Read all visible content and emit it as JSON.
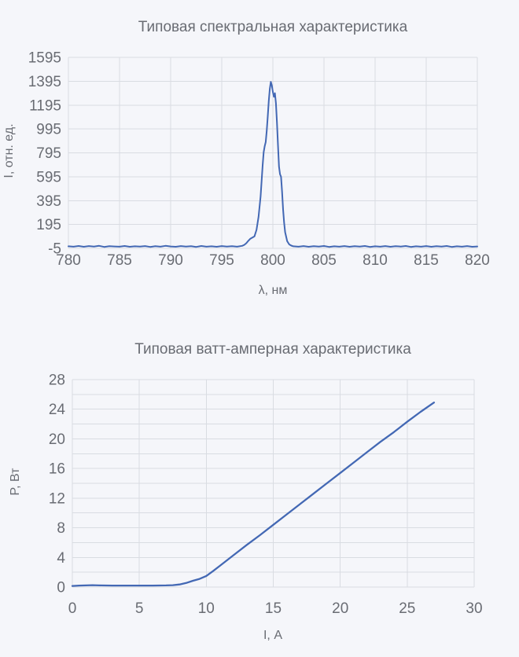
{
  "theme": {
    "background": "#f5f6fa",
    "grid_color": "#d9dce2",
    "text_color": "#696c73",
    "line_color": "#4368b4"
  },
  "chart_data": [
    {
      "type": "line",
      "title": "Типовая спектральная характеристика",
      "xlabel": "λ, нм",
      "ylabel": "I, отн. ед.",
      "xlim": [
        780,
        820
      ],
      "ylim": [
        -5,
        1595
      ],
      "x_ticks": [
        780,
        785,
        790,
        795,
        800,
        805,
        810,
        815,
        820
      ],
      "y_grid": [
        -5,
        195,
        395,
        595,
        795,
        995,
        1195,
        1395,
        1595
      ],
      "y_labels": [
        -5,
        195,
        395,
        595,
        795,
        995,
        1195,
        1395,
        1595
      ],
      "grid": "on",
      "legend": "none",
      "line_color": "#4368b4",
      "line_width": 2,
      "points": [
        [
          780,
          12
        ],
        [
          780.5,
          9
        ],
        [
          781,
          15
        ],
        [
          781.5,
          8
        ],
        [
          782,
          14
        ],
        [
          782.5,
          10
        ],
        [
          783,
          16
        ],
        [
          783.5,
          7
        ],
        [
          784,
          13
        ],
        [
          784.5,
          11
        ],
        [
          785,
          9
        ],
        [
          785.5,
          15
        ],
        [
          786,
          8
        ],
        [
          786.5,
          12
        ],
        [
          787,
          10
        ],
        [
          787.5,
          14
        ],
        [
          788,
          7
        ],
        [
          788.5,
          13
        ],
        [
          789,
          9
        ],
        [
          789.5,
          16
        ],
        [
          790,
          11
        ],
        [
          790.5,
          8
        ],
        [
          791,
          14
        ],
        [
          791.5,
          10
        ],
        [
          792,
          13
        ],
        [
          792.5,
          7
        ],
        [
          793,
          15
        ],
        [
          793.5,
          9
        ],
        [
          794,
          12
        ],
        [
          794.5,
          8
        ],
        [
          795,
          14
        ],
        [
          795.5,
          10
        ],
        [
          796,
          13
        ],
        [
          796.5,
          9
        ],
        [
          797,
          16
        ],
        [
          797.2,
          24
        ],
        [
          797.4,
          38
        ],
        [
          797.6,
          58
        ],
        [
          797.8,
          76
        ],
        [
          798,
          86
        ],
        [
          798.2,
          96
        ],
        [
          798.4,
          150
        ],
        [
          798.6,
          260
        ],
        [
          798.8,
          430
        ],
        [
          798.9,
          560
        ],
        [
          799,
          690
        ],
        [
          799.1,
          800
        ],
        [
          799.2,
          850
        ],
        [
          799.3,
          885
        ],
        [
          799.4,
          980
        ],
        [
          799.5,
          1100
        ],
        [
          799.6,
          1230
        ],
        [
          799.7,
          1330
        ],
        [
          799.8,
          1390
        ],
        [
          799.9,
          1360
        ],
        [
          800,
          1305
        ],
        [
          800.1,
          1265
        ],
        [
          800.2,
          1295
        ],
        [
          800.3,
          1210
        ],
        [
          800.4,
          1050
        ],
        [
          800.5,
          860
        ],
        [
          800.6,
          680
        ],
        [
          800.7,
          615
        ],
        [
          800.8,
          595
        ],
        [
          800.9,
          470
        ],
        [
          801,
          320
        ],
        [
          801.1,
          210
        ],
        [
          801.2,
          130
        ],
        [
          801.4,
          55
        ],
        [
          801.6,
          28
        ],
        [
          801.8,
          18
        ],
        [
          802,
          12
        ],
        [
          802.5,
          9
        ],
        [
          803,
          14
        ],
        [
          803.5,
          8
        ],
        [
          804,
          13
        ],
        [
          804.5,
          10
        ],
        [
          805,
          15
        ],
        [
          805.5,
          7
        ],
        [
          806,
          12
        ],
        [
          806.5,
          9
        ],
        [
          807,
          14
        ],
        [
          807.5,
          8
        ],
        [
          808,
          13
        ],
        [
          808.5,
          10
        ],
        [
          809,
          15
        ],
        [
          809.5,
          7
        ],
        [
          810,
          12
        ],
        [
          810.5,
          9
        ],
        [
          811,
          14
        ],
        [
          811.5,
          8
        ],
        [
          812,
          13
        ],
        [
          812.5,
          10
        ],
        [
          813,
          15
        ],
        [
          813.5,
          7
        ],
        [
          814,
          12
        ],
        [
          814.5,
          9
        ],
        [
          815,
          14
        ],
        [
          815.5,
          8
        ],
        [
          816,
          13
        ],
        [
          816.5,
          10
        ],
        [
          817,
          15
        ],
        [
          817.5,
          7
        ],
        [
          818,
          12
        ],
        [
          818.5,
          9
        ],
        [
          819,
          14
        ],
        [
          819.5,
          8
        ],
        [
          820,
          11
        ]
      ]
    },
    {
      "type": "line",
      "title": "Типовая ватт-амперная характеристика",
      "xlabel": "I, А",
      "ylabel": "P, Вт",
      "xlim": [
        0,
        30
      ],
      "ylim": [
        0,
        28
      ],
      "x_ticks": [
        0,
        5,
        10,
        15,
        20,
        25,
        30
      ],
      "y_grid": [
        0,
        2,
        4,
        6,
        8,
        10,
        12,
        14,
        16,
        18,
        20,
        22,
        24,
        26,
        28
      ],
      "y_labels": [
        0,
        4,
        8,
        12,
        16,
        20,
        24,
        28
      ],
      "grid": "on",
      "legend": "none",
      "line_color": "#4368b4",
      "line_width": 2.3,
      "points": [
        [
          0,
          0.15
        ],
        [
          0.5,
          0.2
        ],
        [
          1,
          0.22
        ],
        [
          1.5,
          0.25
        ],
        [
          2,
          0.22
        ],
        [
          3,
          0.2
        ],
        [
          4,
          0.2
        ],
        [
          5,
          0.2
        ],
        [
          6,
          0.2
        ],
        [
          7,
          0.22
        ],
        [
          7.5,
          0.25
        ],
        [
          8,
          0.35
        ],
        [
          8.5,
          0.55
        ],
        [
          9,
          0.85
        ],
        [
          9.5,
          1.1
        ],
        [
          10,
          1.5
        ],
        [
          10.5,
          2.15
        ],
        [
          11,
          2.85
        ],
        [
          12,
          4.25
        ],
        [
          13,
          5.65
        ],
        [
          14,
          7
        ],
        [
          15,
          8.4
        ],
        [
          16,
          9.8
        ],
        [
          17,
          11.2
        ],
        [
          18,
          12.6
        ],
        [
          19,
          14
        ],
        [
          20,
          15.4
        ],
        [
          21,
          16.8
        ],
        [
          22,
          18.2
        ],
        [
          23,
          19.6
        ],
        [
          24,
          20.9
        ],
        [
          25,
          22.3
        ],
        [
          26,
          23.65
        ],
        [
          27,
          24.9
        ]
      ]
    }
  ]
}
